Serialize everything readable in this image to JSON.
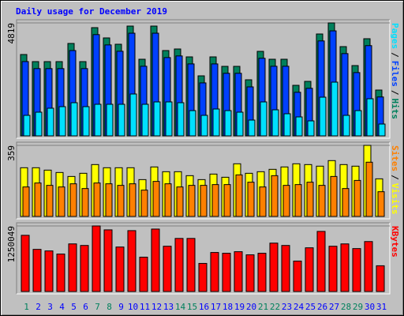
{
  "title": "Daily usage for December 2019",
  "legend_separator": "/",
  "chart_data": [
    {
      "type": "bar",
      "categories": [
        "1",
        "2",
        "3",
        "4",
        "5",
        "6",
        "7",
        "8",
        "9",
        "10",
        "11",
        "12",
        "13",
        "14",
        "15",
        "16",
        "17",
        "18",
        "19",
        "20",
        "21",
        "22",
        "23",
        "24",
        "25",
        "26",
        "27",
        "28",
        "29",
        "30",
        "31"
      ],
      "category_colors": [
        "#00805c",
        "#0000ff",
        "#0000ff",
        "#0000ff",
        "#0000ff",
        "#0000ff",
        "#00805c",
        "#00805c",
        "#0000ff",
        "#0000ff",
        "#0000ff",
        "#0000ff",
        "#0000ff",
        "#00805c",
        "#00805c",
        "#0000ff",
        "#0000ff",
        "#0000ff",
        "#0000ff",
        "#0000ff",
        "#00805c",
        "#00805c",
        "#0000ff",
        "#0000ff",
        "#0000ff",
        "#0000ff",
        "#0000ff",
        "#00805c",
        "#00805c",
        "#0000ff",
        "#0000ff"
      ],
      "ylim": [
        0,
        4819
      ],
      "yticks": [
        4819
      ],
      "series": [
        {
          "name": "Hits",
          "color": "#00805c",
          "values": [
            3471,
            3168,
            3168,
            3168,
            3943,
            3168,
            4617,
            4179,
            3909,
            4684,
            3269,
            4684,
            3640,
            3707,
            3370,
            2561,
            3370,
            2966,
            2966,
            2393,
            3606,
            3269,
            3269,
            2157,
            2325,
            4347,
            4819,
            3808,
            2999,
            4145,
            1955
          ]
        },
        {
          "name": "Files",
          "color": "#0040ff",
          "values": [
            3170,
            2870,
            2870,
            2870,
            3640,
            2870,
            4320,
            3880,
            3610,
            4380,
            2970,
            4380,
            3340,
            3410,
            3070,
            2260,
            3070,
            2670,
            2670,
            2090,
            3310,
            2970,
            2970,
            1860,
            2030,
            4050,
            4480,
            3510,
            2700,
            3850,
            1660
          ]
        },
        {
          "name": "Pages",
          "color": "#00e0ff",
          "values": [
            876,
            1011,
            1180,
            1247,
            1415,
            1247,
            1348,
            1348,
            1348,
            1786,
            1348,
            1449,
            1449,
            1415,
            1078,
            876,
            1146,
            1078,
            1011,
            674,
            1449,
            1112,
            944,
            809,
            640,
            1651,
            2292,
            876,
            1078,
            1584,
            505
          ]
        }
      ]
    },
    {
      "type": "bar",
      "ylim": [
        0,
        359
      ],
      "yticks": [
        359
      ],
      "series": [
        {
          "name": "Visits",
          "color": "#ffff00",
          "values": [
            246,
            246,
            234,
            222,
            202,
            218,
            262,
            246,
            246,
            246,
            186,
            250,
            226,
            226,
            206,
            186,
            214,
            198,
            266,
            218,
            226,
            238,
            250,
            266,
            262,
            254,
            282,
            262,
            254,
            359,
            190
          ]
        },
        {
          "name": "Sites",
          "color": "#ff8000",
          "values": [
            149,
            169,
            157,
            149,
            165,
            141,
            169,
            165,
            157,
            165,
            133,
            177,
            165,
            149,
            157,
            157,
            161,
            161,
            210,
            173,
            149,
            206,
            157,
            161,
            173,
            157,
            202,
            141,
            182,
            274,
            125
          ]
        }
      ]
    },
    {
      "type": "bar",
      "ylim": [
        0,
        1250049
      ],
      "yticks": [
        1250049
      ],
      "series": [
        {
          "name": "KBytes",
          "color": "#ff0000",
          "values": [
            1071471,
            803603,
            773841,
            714314,
            907774,
            878011,
            1250049,
            1175641,
            848248,
            1160760,
            654788,
            1190523,
            863130,
            1011944,
            1011944,
            535735,
            744077,
            729195,
            758958,
            699433,
            729195,
            922656,
            878011,
            580380,
            833366,
            1145878,
            863130,
            907774,
            818484,
            952418,
            491091
          ]
        }
      ]
    }
  ]
}
